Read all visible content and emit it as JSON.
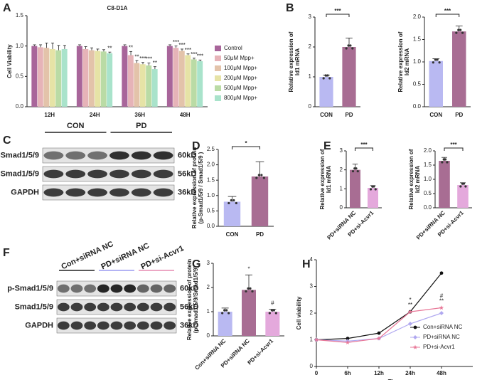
{
  "chart_data": [
    {
      "panel": "A",
      "type": "bar",
      "title": "C8-D1A",
      "y_label": [
        "Cell Viability"
      ],
      "categories": [
        "12H",
        "24H",
        "36H",
        "48H"
      ],
      "ylim": [
        0,
        1.5
      ],
      "yticks": [
        {
          "value": 0,
          "label": "0.0"
        },
        {
          "value": 0.5,
          "label": "0.5"
        },
        {
          "value": 1,
          "label": "1.0"
        },
        {
          "value": 1.5,
          "label": "1.5"
        }
      ],
      "legend": "right",
      "series": [
        {
          "name": "Control",
          "color": "#a8659a",
          "values": [
            1.0,
            1.0,
            1.0,
            1.0
          ],
          "errors": [
            0.02,
            0.02,
            0.02,
            0.02
          ],
          "significance": [
            null,
            null,
            null,
            null
          ]
        },
        {
          "name": "50μM Mpp+",
          "color": "#e6b3b8",
          "values": [
            0.98,
            0.95,
            0.85,
            0.97
          ],
          "errors": [
            0.04,
            0.04,
            0.06,
            0.03
          ],
          "significance": [
            null,
            null,
            "**",
            "***"
          ]
        },
        {
          "name": "100μM Mpp+",
          "color": "#e3c3aa",
          "values": [
            0.97,
            0.93,
            0.72,
            0.92
          ],
          "errors": [
            0.08,
            0.04,
            0.04,
            0.03
          ],
          "significance": [
            null,
            null,
            "**",
            "***"
          ]
        },
        {
          "name": "200μM Mpp+",
          "color": "#e6e3a6",
          "values": [
            0.95,
            0.92,
            0.7,
            0.85
          ],
          "errors": [
            0.1,
            0.03,
            0.03,
            0.02
          ],
          "significance": [
            null,
            null,
            "***",
            "***"
          ]
        },
        {
          "name": "500μM Mpp+",
          "color": "#badba5",
          "values": [
            0.93,
            0.91,
            0.68,
            0.78
          ],
          "errors": [
            0.08,
            0.03,
            0.04,
            0.02
          ],
          "significance": [
            null,
            null,
            "***",
            "***"
          ]
        },
        {
          "name": "800μM Mpp+",
          "color": "#a9e3cb",
          "values": [
            0.95,
            0.88,
            0.62,
            0.75
          ],
          "errors": [
            0.06,
            0.02,
            0.04,
            0.02
          ],
          "significance": [
            null,
            "**",
            "**",
            "***"
          ]
        }
      ]
    },
    {
      "panel": "B",
      "type": "bar",
      "y_label": [
        "Relative expression of",
        "Id1  mRNA"
      ],
      "categories": [
        "CON",
        "PD"
      ],
      "colors": [
        "#b9b9f2",
        "#a86d93"
      ],
      "values": [
        1.0,
        2.0
      ],
      "errors": [
        0.06,
        0.3
      ],
      "ylim": [
        0,
        3
      ],
      "yticks": [
        0,
        1,
        2,
        3
      ],
      "significance": "***"
    },
    {
      "type": "bar",
      "y_label": [
        "Relative expression of",
        "Id2  mRNA"
      ],
      "categories": [
        "CON",
        "PD"
      ],
      "colors": [
        "#b9b9f2",
        "#a86d93"
      ],
      "values": [
        1.02,
        1.68
      ],
      "errors": [
        0.05,
        0.12
      ],
      "ylim": [
        0,
        2
      ],
      "yticks": [
        {
          "value": 0,
          "label": "0.0"
        },
        {
          "value": 0.5,
          "label": "0.5"
        },
        {
          "value": 1,
          "label": "1.0"
        },
        {
          "value": 1.5,
          "label": "1.5"
        },
        {
          "value": 2,
          "label": "2.0"
        }
      ],
      "significance": "***"
    },
    {
      "panel": "D",
      "type": "bar",
      "y_label": [
        "Relative expression of protein",
        "(p-Smad1/5/9 / Smad1/5/9 )"
      ],
      "categories": [
        "CON",
        "PD"
      ],
      "colors": [
        "#b9b9f2",
        "#a86d93"
      ],
      "values": [
        0.8,
        1.62
      ],
      "errors": [
        0.17,
        0.48
      ],
      "ylim": [
        0,
        2.5
      ],
      "yticks": [
        {
          "value": 0,
          "label": "0.0"
        },
        {
          "value": 0.5,
          "label": "0.5"
        },
        {
          "value": 1,
          "label": "1.0"
        },
        {
          "value": 1.5,
          "label": "1.5"
        },
        {
          "value": 2,
          "label": "2.0"
        },
        {
          "value": 2.5,
          "label": "2.5"
        }
      ],
      "significance": "*"
    },
    {
      "panel": "E",
      "type": "bar",
      "y_label": [
        "Relative expression of",
        "Id1  mRNA"
      ],
      "categories": [
        "PD+siRNA NC",
        "PD+si-Acvr1"
      ],
      "colors": [
        "#a86d93",
        "#e4a9dc"
      ],
      "values": [
        2.0,
        1.05
      ],
      "errors": [
        0.3,
        0.12
      ],
      "ylim": [
        0,
        3
      ],
      "yticks": [
        0,
        1,
        2,
        3
      ],
      "significance": "***"
    },
    {
      "type": "bar",
      "y_label": [
        "Relative expression of",
        "Id2  mRNA"
      ],
      "categories": [
        "PD+siRNA NC",
        "PD+si-Acvr1"
      ],
      "colors": [
        "#a86d93",
        "#e4a9dc"
      ],
      "values": [
        1.65,
        0.8
      ],
      "errors": [
        0.12,
        0.08
      ],
      "ylim": [
        0,
        2
      ],
      "yticks": [
        {
          "value": 0,
          "label": "0.0"
        },
        {
          "value": 0.5,
          "label": "0.5"
        },
        {
          "value": 1,
          "label": "1.0"
        },
        {
          "value": 1.5,
          "label": "1.5"
        },
        {
          "value": 2,
          "label": "2.0"
        }
      ],
      "significance": "***"
    },
    {
      "panel": "G",
      "type": "bar",
      "y_label": [
        "Relative expression of protein",
        "(p-Smad1/5/9/Smad1/5/9)"
      ],
      "categories": [
        "Con+siRNA NC",
        "PD+siRNA NC",
        "PD+si-Acvr1"
      ],
      "colors": [
        "#b9b9f2",
        "#a86d93",
        "#e4a9dc"
      ],
      "values": [
        1.0,
        1.9,
        1.0
      ],
      "errors": [
        0.15,
        0.62,
        0.1
      ],
      "ylim": [
        0,
        3
      ],
      "yticks": [
        0,
        1,
        2,
        3
      ],
      "significance": [
        null,
        "*",
        "#"
      ]
    },
    {
      "panel": "H",
      "type": "line",
      "y_label": [
        "Cell viability"
      ],
      "x_label": "Time",
      "categories": [
        "0",
        "6h",
        "12h",
        "24h",
        "48h"
      ],
      "ylim": [
        0,
        4
      ],
      "yticks": [
        0,
        1,
        2,
        3,
        4
      ],
      "legend": "right",
      "series": [
        {
          "name": "Con+siRNA NC",
          "color": "#111111",
          "marker": "circle",
          "values": [
            1.0,
            1.05,
            1.25,
            2.05,
            3.5
          ],
          "significance": [
            null,
            null,
            null,
            null,
            null
          ]
        },
        {
          "name": "PD+siRNA NC",
          "color": "#b0a8f0",
          "marker": "diamond",
          "values": [
            1.0,
            0.95,
            1.05,
            1.6,
            2.0
          ],
          "significance": [
            null,
            null,
            null,
            "**",
            "**"
          ]
        },
        {
          "name": "PD+si-Acvr1",
          "color": "#e87898",
          "marker": "star",
          "values": [
            1.0,
            0.9,
            1.05,
            2.05,
            2.2
          ],
          "significance": [
            null,
            null,
            null,
            "*",
            "#"
          ]
        }
      ]
    }
  ],
  "blots": [
    {
      "panel": "C",
      "groups": [
        "CON",
        "PD"
      ],
      "lanes": 6,
      "proteins": [
        {
          "name": "p-Smad1/5/9",
          "size": "60kD"
        },
        {
          "name": "Smad1/5/9",
          "size": "56kD"
        },
        {
          "name": "GAPDH",
          "size": "36kD"
        }
      ]
    },
    {
      "panel": "F",
      "groups": [
        "Con+siRNA NC",
        "PD+siRNA NC",
        "PD+si-Acvr1"
      ],
      "group_colors": [
        "#222222",
        "#9a9af0",
        "#e58ab0"
      ],
      "lanes": 9,
      "proteins": [
        {
          "name": "p-Smad1/5/9",
          "size": "60kD"
        },
        {
          "name": "Smad1/5/9",
          "size": "56kD"
        },
        {
          "name": "GAPDH",
          "size": "36kD"
        }
      ]
    }
  ]
}
